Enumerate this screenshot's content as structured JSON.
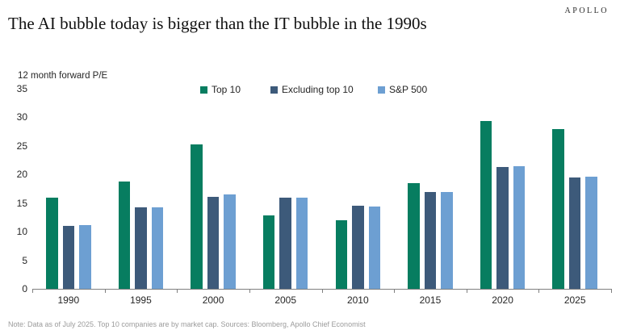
{
  "brand": "APOLLO",
  "note": "Note: Data as of July 2025. Top 10 companies are by market cap. Sources: Bloomberg, Apollo Chief Economist",
  "chart_data": {
    "type": "bar",
    "title": "The AI bubble today is bigger than the IT bubble in the 1990s",
    "axis_title": "12 month forward P/E",
    "categories": [
      "1990",
      "1995",
      "2000",
      "2005",
      "2010",
      "2015",
      "2020",
      "2025"
    ],
    "series": [
      {
        "name": "Top 10",
        "color": "#077d60",
        "values": [
          15.9,
          18.8,
          25.2,
          12.8,
          12.0,
          18.5,
          29.3,
          28.0
        ]
      },
      {
        "name": "Excluding top 10",
        "color": "#3d5a7a",
        "values": [
          11.0,
          14.2,
          16.1,
          16.0,
          14.5,
          17.0,
          21.3,
          19.5
        ]
      },
      {
        "name": "S&P 500",
        "color": "#6d9fd2",
        "values": [
          11.1,
          14.3,
          16.5,
          16.0,
          14.4,
          17.0,
          21.5,
          19.6
        ]
      }
    ],
    "ylim": [
      0,
      35
    ],
    "ytick_step": 5,
    "grid": false,
    "legend_position": "top"
  }
}
